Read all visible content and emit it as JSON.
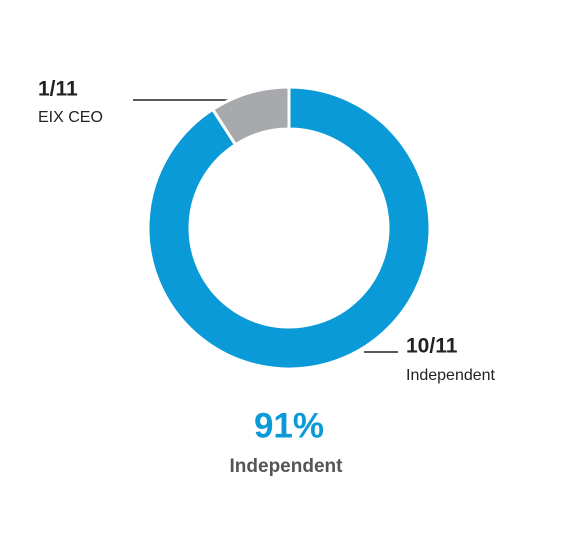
{
  "chart_data": {
    "type": "donut",
    "categories": [
      "Independent",
      "EIX CEO"
    ],
    "values": [
      10,
      1
    ],
    "value_labels": [
      "10/11",
      "1/11"
    ],
    "colors": [
      "#0a9ad8",
      "#a7a9ac"
    ],
    "center_text": "91%",
    "center_subtitle": "Independent"
  }
}
